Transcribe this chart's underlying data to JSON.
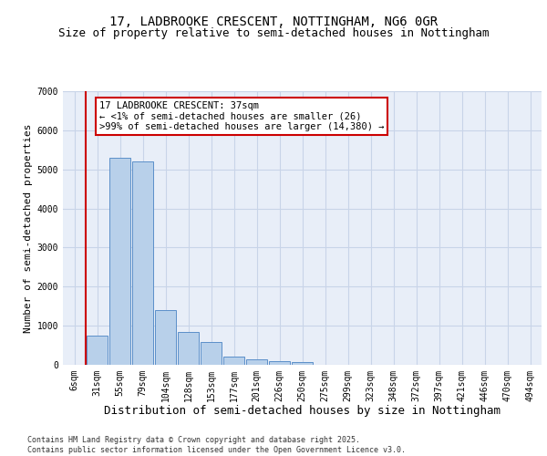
{
  "title1": "17, LADBROOKE CRESCENT, NOTTINGHAM, NG6 0GR",
  "title2": "Size of property relative to semi-detached houses in Nottingham",
  "xlabel": "Distribution of semi-detached houses by size in Nottingham",
  "ylabel": "Number of semi-detached properties",
  "categories": [
    "6sqm",
    "31sqm",
    "55sqm",
    "79sqm",
    "104sqm",
    "128sqm",
    "153sqm",
    "177sqm",
    "201sqm",
    "226sqm",
    "250sqm",
    "275sqm",
    "299sqm",
    "323sqm",
    "348sqm",
    "372sqm",
    "397sqm",
    "421sqm",
    "446sqm",
    "470sqm",
    "494sqm"
  ],
  "bar_heights": [
    0,
    750,
    5300,
    5200,
    1400,
    850,
    580,
    200,
    150,
    100,
    60,
    0,
    0,
    0,
    0,
    0,
    0,
    0,
    0,
    0,
    0
  ],
  "bar_color": "#b8d0ea",
  "bar_edge_color": "#5b8fc9",
  "ylim": [
    0,
    7000
  ],
  "yticks": [
    0,
    1000,
    2000,
    3000,
    4000,
    5000,
    6000,
    7000
  ],
  "property_line_x": 0.5,
  "property_line_color": "#cc0000",
  "annotation_text": "17 LADBROOKE CRESCENT: 37sqm\n← <1% of semi-detached houses are smaller (26)\n>99% of semi-detached houses are larger (14,380) →",
  "annotation_box_color": "#cc0000",
  "footer_text": "Contains HM Land Registry data © Crown copyright and database right 2025.\nContains public sector information licensed under the Open Government Licence v3.0.",
  "bg_color": "#e8eef8",
  "grid_color": "#c8d4e8",
  "title_fontsize": 10,
  "subtitle_fontsize": 9,
  "tick_fontsize": 7,
  "xlabel_fontsize": 9,
  "ylabel_fontsize": 8,
  "annotation_fontsize": 7.5,
  "footer_fontsize": 6
}
